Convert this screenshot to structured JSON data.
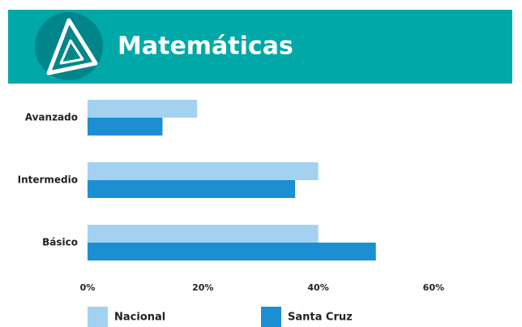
{
  "chart_data": {
    "type": "bar",
    "orientation": "horizontal",
    "title": "Matemáticas",
    "categories": [
      "Avanzado",
      "Intermedio",
      "Básico"
    ],
    "series": [
      {
        "name": "Nacional",
        "color": "#a3d2f1",
        "values": [
          19,
          40,
          40
        ]
      },
      {
        "name": "Santa Cruz",
        "color": "#1b8fd2",
        "values": [
          13,
          36,
          50
        ]
      }
    ],
    "xlim": [
      0,
      70
    ],
    "xticks": [
      {
        "value": 0,
        "label": "0%"
      },
      {
        "value": 20,
        "label": "20%"
      },
      {
        "value": 40,
        "label": "40%"
      },
      {
        "value": 60,
        "label": "60%"
      }
    ],
    "grid": false,
    "legend": "bottom"
  }
}
